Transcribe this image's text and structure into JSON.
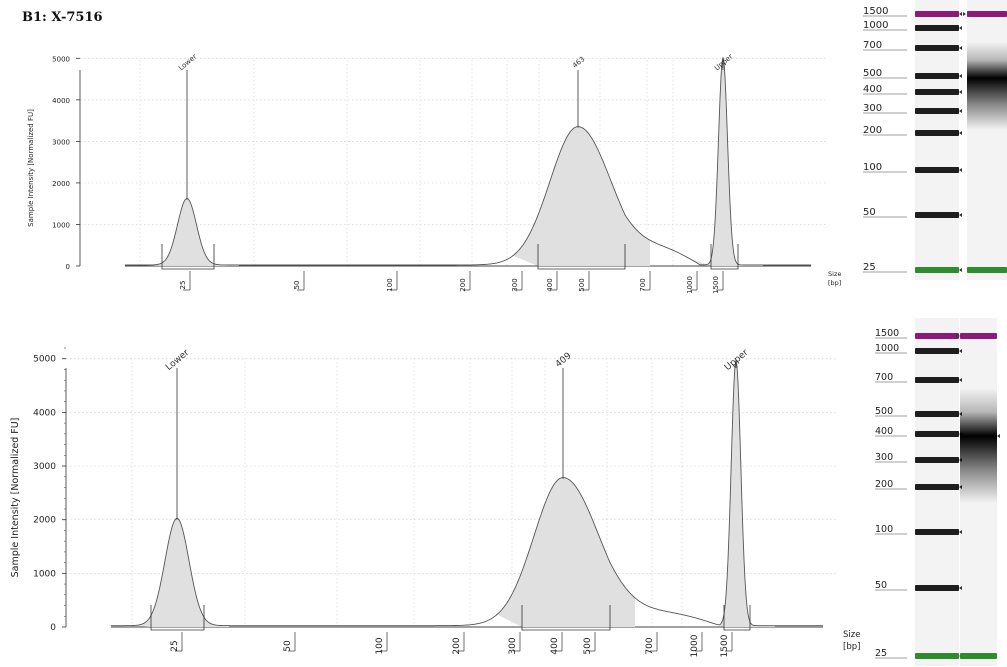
{
  "header": {
    "text": "B1: X-7516"
  },
  "chart_data": [
    {
      "type": "line",
      "ylabel": "Sample Intensity [Normalized FU]",
      "xlabel": "Size [bp]",
      "size_label": "Size",
      "unit_label": "[bp]",
      "yticks": [
        0,
        1000,
        2000,
        3000,
        4000,
        5000
      ],
      "ylim": [
        0,
        5200
      ],
      "xticks": [
        "25",
        "50",
        "100",
        "200",
        "300",
        "400",
        "500",
        "700",
        "1000",
        "1500"
      ],
      "grid": true,
      "peaks": [
        {
          "label": "Lower",
          "size_bp": 25,
          "height": 1600
        },
        {
          "label": "463",
          "size_bp": 463,
          "height": 3330
        },
        {
          "label": "Upper",
          "size_bp": 1500,
          "height": 5000
        }
      ]
    },
    {
      "type": "line",
      "ylabel": "Sample Intensity [Normalized FU]",
      "xlabel": "Size [bp]",
      "size_label": "Size",
      "unit_label": "[bp]",
      "yticks": [
        0,
        1000,
        2000,
        3000,
        4000,
        5000
      ],
      "ylim": [
        0,
        5200
      ],
      "xticks": [
        "25",
        "50",
        "100",
        "200",
        "300",
        "400",
        "500",
        "700",
        "1000",
        "1500"
      ],
      "grid": true,
      "peaks": [
        {
          "label": "Lower",
          "size_bp": 25,
          "height": 2000
        },
        {
          "label": "409",
          "size_bp": 409,
          "height": 2760
        },
        {
          "label": "Upper",
          "size_bp": 1500,
          "height": 4950
        }
      ]
    }
  ],
  "gel": {
    "ladder_labels": [
      "1500",
      "1000",
      "700",
      "500",
      "400",
      "300",
      "200",
      "100",
      "50",
      "25"
    ],
    "marker_colors": {
      "upper": "#8b1a7a",
      "lower": "#2e8b2e"
    }
  }
}
